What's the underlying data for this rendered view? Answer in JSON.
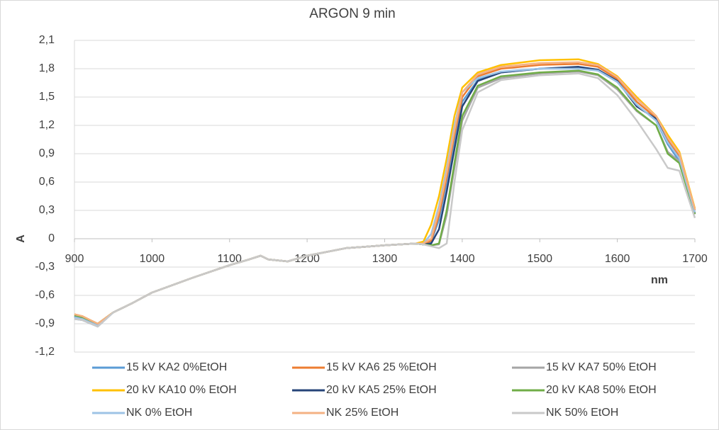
{
  "chart_data": {
    "type": "line",
    "title": "ARGON 9 min",
    "x_label": "nm",
    "y_label": "A",
    "grid": true,
    "legend_position": "bottom",
    "x": [
      900,
      910,
      930,
      950,
      975,
      1000,
      1050,
      1100,
      1125,
      1140,
      1150,
      1175,
      1200,
      1250,
      1300,
      1340,
      1350,
      1360,
      1370,
      1380,
      1390,
      1400,
      1420,
      1450,
      1500,
      1550,
      1575,
      1600,
      1625,
      1650,
      1665,
      1680,
      1700
    ],
    "xlim": [
      900,
      1700
    ],
    "xticks": [
      900,
      1000,
      1100,
      1200,
      1300,
      1400,
      1500,
      1600,
      1700
    ],
    "ylim": [
      -1.2,
      2.1
    ],
    "yticks": [
      {
        "value": -1.2,
        "label": "-1,2"
      },
      {
        "value": -0.9,
        "label": "-0,9"
      },
      {
        "value": -0.6,
        "label": "-0,6"
      },
      {
        "value": -0.3,
        "label": "-0,3"
      },
      0,
      {
        "value": 0.3,
        "label": "0,3"
      },
      {
        "value": 0.6,
        "label": "0,6"
      },
      {
        "value": 0.9,
        "label": "0,9"
      },
      {
        "value": 1.2,
        "label": "1,2"
      },
      {
        "value": 1.5,
        "label": "1,5"
      },
      {
        "value": 1.8,
        "label": "1,8"
      },
      {
        "value": 2.1,
        "label": "2,1"
      }
    ],
    "series": [
      {
        "name": "15 kV KA2 0%EtOH",
        "color": "#5b9bd5",
        "values": [
          -0.85,
          -0.86,
          -0.93,
          -0.78,
          -0.68,
          -0.57,
          -0.42,
          -0.28,
          -0.22,
          -0.18,
          -0.22,
          -0.24,
          -0.18,
          -0.1,
          -0.07,
          -0.05,
          -0.06,
          -0.03,
          0.2,
          0.6,
          1.05,
          1.45,
          1.68,
          1.76,
          1.8,
          1.81,
          1.78,
          1.66,
          1.42,
          1.25,
          1.0,
          0.82,
          0.26
        ]
      },
      {
        "name": "15 kV KA6 25 %EtOH",
        "color": "#ed7d31",
        "values": [
          -0.8,
          -0.82,
          -0.9,
          -0.78,
          -0.68,
          -0.57,
          -0.42,
          -0.28,
          -0.22,
          -0.18,
          -0.22,
          -0.24,
          -0.18,
          -0.1,
          -0.07,
          -0.05,
          -0.06,
          -0.02,
          0.25,
          0.65,
          1.1,
          1.5,
          1.72,
          1.8,
          1.84,
          1.85,
          1.82,
          1.69,
          1.45,
          1.28,
          1.05,
          0.88,
          0.3
        ]
      },
      {
        "name": "15 kV KA7 50% EtOH",
        "color": "#a5a5a5",
        "values": [
          -0.82,
          -0.84,
          -0.91,
          -0.78,
          -0.68,
          -0.57,
          -0.42,
          -0.28,
          -0.22,
          -0.18,
          -0.22,
          -0.24,
          -0.18,
          -0.1,
          -0.07,
          -0.05,
          -0.06,
          -0.07,
          -0.06,
          0.25,
          0.75,
          1.25,
          1.6,
          1.7,
          1.75,
          1.77,
          1.73,
          1.58,
          1.35,
          1.2,
          0.92,
          0.82,
          0.26
        ]
      },
      {
        "name": "20 kV KA10 0% EtOH",
        "color": "#ffc000",
        "values": [
          -0.8,
          -0.82,
          -0.9,
          -0.78,
          -0.68,
          -0.57,
          -0.42,
          -0.28,
          -0.22,
          -0.18,
          -0.22,
          -0.24,
          -0.18,
          -0.1,
          -0.07,
          -0.05,
          -0.03,
          0.15,
          0.45,
          0.85,
          1.3,
          1.6,
          1.76,
          1.84,
          1.89,
          1.9,
          1.85,
          1.72,
          1.5,
          1.3,
          1.1,
          0.92,
          0.32
        ]
      },
      {
        "name": "20 kV KA5 25% EtOH",
        "color": "#264478",
        "values": [
          -0.82,
          -0.84,
          -0.91,
          -0.78,
          -0.68,
          -0.57,
          -0.42,
          -0.28,
          -0.22,
          -0.18,
          -0.22,
          -0.24,
          -0.18,
          -0.1,
          -0.07,
          -0.05,
          -0.06,
          -0.05,
          0.1,
          0.5,
          0.95,
          1.4,
          1.67,
          1.76,
          1.8,
          1.82,
          1.79,
          1.67,
          1.4,
          1.27,
          1.02,
          0.85,
          0.27
        ]
      },
      {
        "name": "20 kV KA8 50% EtOH",
        "color": "#70ad47",
        "values": [
          -0.81,
          -0.83,
          -0.9,
          -0.78,
          -0.68,
          -0.57,
          -0.42,
          -0.28,
          -0.22,
          -0.18,
          -0.22,
          -0.24,
          -0.18,
          -0.1,
          -0.07,
          -0.05,
          -0.06,
          -0.07,
          -0.05,
          0.3,
          0.8,
          1.3,
          1.62,
          1.72,
          1.76,
          1.78,
          1.74,
          1.6,
          1.36,
          1.2,
          0.9,
          0.8,
          0.26
        ]
      },
      {
        "name": "NK 0% EtOH",
        "color": "#9dc3e6",
        "values": [
          -0.83,
          -0.85,
          -0.92,
          -0.78,
          -0.68,
          -0.57,
          -0.42,
          -0.28,
          -0.22,
          -0.18,
          -0.22,
          -0.24,
          -0.18,
          -0.1,
          -0.07,
          -0.05,
          -0.05,
          0.05,
          0.35,
          0.75,
          1.2,
          1.55,
          1.7,
          1.77,
          1.8,
          1.8,
          1.78,
          1.66,
          1.42,
          1.25,
          1.02,
          0.85,
          0.28
        ]
      },
      {
        "name": "NK 25% EtOH",
        "color": "#f4b183",
        "values": [
          -0.8,
          -0.82,
          -0.9,
          -0.78,
          -0.68,
          -0.57,
          -0.42,
          -0.28,
          -0.22,
          -0.18,
          -0.22,
          -0.24,
          -0.18,
          -0.1,
          -0.07,
          -0.05,
          -0.05,
          0.0,
          0.3,
          0.7,
          1.15,
          1.55,
          1.74,
          1.82,
          1.86,
          1.87,
          1.84,
          1.71,
          1.48,
          1.3,
          1.07,
          0.9,
          0.31
        ]
      },
      {
        "name": "NK 50% EtOH",
        "color": "#c9c9c9",
        "values": [
          -0.85,
          -0.86,
          -0.93,
          -0.78,
          -0.68,
          -0.57,
          -0.42,
          -0.28,
          -0.22,
          -0.18,
          -0.22,
          -0.24,
          -0.18,
          -0.1,
          -0.07,
          -0.05,
          -0.06,
          -0.08,
          -0.1,
          -0.05,
          0.6,
          1.15,
          1.55,
          1.68,
          1.73,
          1.75,
          1.7,
          1.52,
          1.25,
          0.95,
          0.75,
          0.72,
          0.22
        ]
      }
    ]
  }
}
